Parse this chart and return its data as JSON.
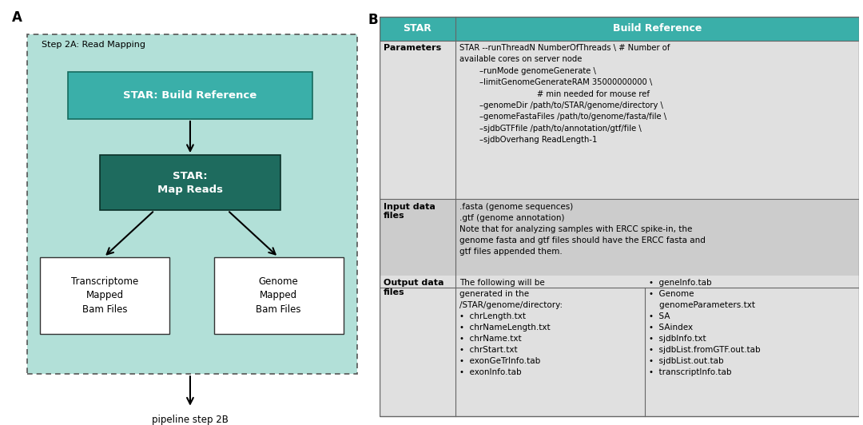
{
  "fig_width": 10.8,
  "fig_height": 5.32,
  "panel_A": {
    "label": "A",
    "bg_color": "#b2e0d8",
    "border_color": "#555555",
    "title": "Step 2A: Read Mapping",
    "box1_text": "STAR: Build Reference",
    "box1_fill": "#3aafa9",
    "box1_text_color": "#ffffff",
    "box2_text": "STAR:\nMap Reads",
    "box2_fill": "#1e6b5e",
    "box2_text_color": "#ffffff",
    "box3_text": "Transcriptome\nMapped\nBam Files",
    "box3_fill": "#ffffff",
    "box3_text_color": "#000000",
    "box4_text": "Genome\nMapped\nBam Files",
    "box4_fill": "#ffffff",
    "box4_text_color": "#000000",
    "footer_text": "pipeline step 2B",
    "arrow_color": "#000000"
  },
  "panel_B": {
    "label": "B",
    "header_fill": "#3aafa9",
    "header_text_color": "#ffffff",
    "col1_header": "STAR",
    "col2_header": "Build Reference",
    "row1_label": "Parameters",
    "row1_content_line1": "STAR --runThreadN NumberOfThreads \\ # Number of",
    "row1_content_line2": "available cores on server node",
    "row1_content_line3": "        –runMode genomeGenerate \\",
    "row1_content_line4": "        –limitGenomeGenerateRAM 35000000000 \\",
    "row1_content_line5": "                               # min needed for mouse ref",
    "row1_content_line6": "        –genomeDir /path/to/STAR/genome/directory \\",
    "row1_content_line7": "        –genomeFastaFiles /path/to/genome/fasta/file \\",
    "row1_content_line8": "        –sjdbGTFfile /path/to/annotation/gtf/file \\",
    "row1_content_line9": "        –sjdbOverhang ReadLength-1",
    "row2_label": "Input data\nfiles",
    "row2_content": ".fasta (genome sequences)\n.gtf (genome annotation)\nNote that for analyzing samples with ERCC spike-in, the\ngenome fasta and gtf files should have the ERCC fasta and\ngtf files appended them.",
    "row3_label": "Output data\nfiles",
    "row3_left": "The following will be\ngenerated in the\n/STAR/genome/directory:\n•  chrLength.txt\n•  chrNameLength.txt\n•  chrName.txt\n•  chrStart.txt\n•  exonGeTrInfo.tab\n•  exonInfo.tab",
    "row3_right": "•  geneInfo.tab\n•  Genome\n    genomeParameters.txt\n•  SA\n•  SAindex\n•  sjdbInfo.txt\n•  sjdbList.fromGTF.out.tab\n•  sjdbList.out.tab\n•  transcriptInfo.tab",
    "row_bg_1": "#e0e0e0",
    "row_bg_2": "#cccccc",
    "row_bg_3": "#e0e0e0",
    "border_color": "#666666"
  }
}
